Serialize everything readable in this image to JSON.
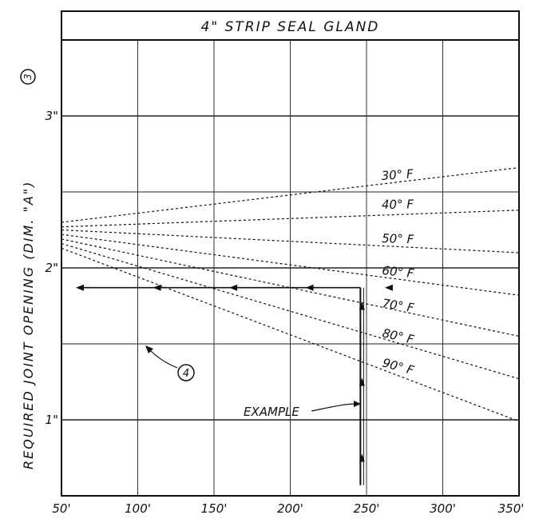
{
  "chart_data": {
    "type": "line",
    "title": "4\" STRIP SEAL GLAND",
    "ylabel": "REQUIRED JOINT OPENING (DIM. \"A\")",
    "ylabel_note": "3",
    "xlabel": "",
    "xlim": [
      50,
      350
    ],
    "ylim": [
      0.5,
      3.5
    ],
    "x_ticks": [
      50,
      100,
      150,
      200,
      250,
      300,
      350
    ],
    "x_tick_labels": [
      "50'",
      "100'",
      "150'",
      "200'",
      "250'",
      "300'",
      "350'"
    ],
    "y_ticks": [
      1,
      2,
      3
    ],
    "y_tick_labels": [
      "1\"",
      "2\"",
      "3\""
    ],
    "grid": true,
    "series": [
      {
        "name": "30° F",
        "style": "dotted",
        "x": [
          50,
          350
        ],
        "y": [
          2.3,
          2.66
        ]
      },
      {
        "name": "40° F",
        "style": "dotted",
        "x": [
          50,
          350
        ],
        "y": [
          2.27,
          2.38
        ]
      },
      {
        "name": "50° F",
        "style": "dotted",
        "x": [
          50,
          350
        ],
        "y": [
          2.25,
          2.1
        ]
      },
      {
        "name": "60° F",
        "style": "dotted",
        "x": [
          50,
          350
        ],
        "y": [
          2.22,
          1.82
        ]
      },
      {
        "name": "70° F",
        "style": "dotted",
        "x": [
          50,
          350
        ],
        "y": [
          2.19,
          1.55
        ]
      },
      {
        "name": "80° F",
        "style": "dotted",
        "x": [
          50,
          350
        ],
        "y": [
          2.16,
          1.27
        ]
      },
      {
        "name": "90° F",
        "style": "dotted",
        "x": [
          50,
          350
        ],
        "y": [
          2.13,
          0.99
        ]
      }
    ],
    "example": {
      "label": "EXAMPLE",
      "x": 246,
      "y": 1.87
    },
    "note_marker": "4"
  }
}
